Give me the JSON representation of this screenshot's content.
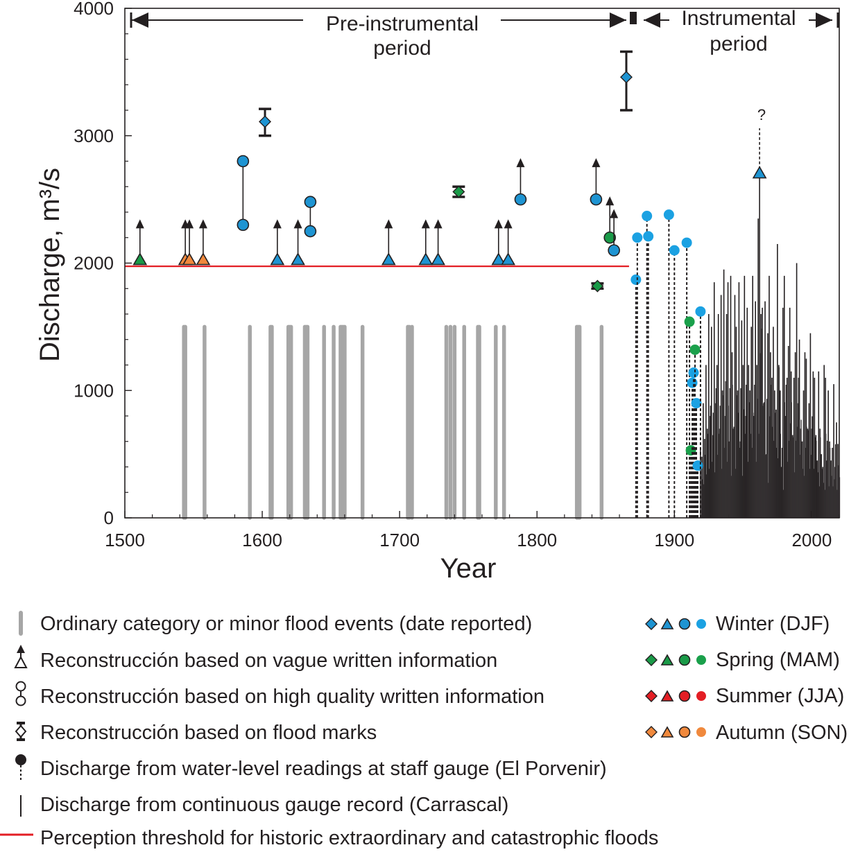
{
  "chart_data": {
    "type": "scatter",
    "xlabel": "Year",
    "ylabel": "Discharge, m³/s",
    "xlim": [
      1500,
      2020
    ],
    "ylim": [
      0,
      4000
    ],
    "x_ticks": [
      1500,
      1600,
      1700,
      1800,
      1900,
      2000
    ],
    "y_ticks": [
      0,
      1000,
      2000,
      3000,
      4000
    ],
    "periods": [
      {
        "name": "pre_instrumental",
        "label_line1": "Pre-instrumental",
        "label_line2": "period",
        "from": 1500,
        "to": 1865
      },
      {
        "name": "instrumental",
        "label_line1": "Instrumental",
        "label_line2": "period",
        "from": 1876,
        "to": 2020
      }
    ],
    "question_mark": "?",
    "threshold": {
      "value": 1975,
      "from": 1500,
      "to": 1867,
      "color": "#e31e24"
    },
    "ordinary_events": [
      1543,
      1544,
      1558,
      1591,
      1606,
      1607,
      1619,
      1620,
      1621,
      1631,
      1632,
      1633,
      1645,
      1652,
      1657,
      1658,
      1659,
      1660,
      1673,
      1706,
      1707,
      1709,
      1734,
      1737,
      1740,
      1747,
      1757,
      1758,
      1770,
      1776,
      1829,
      1830,
      1831,
      1847
    ],
    "ordinary_top": 1500,
    "vague_reconstructions": [
      {
        "year": 1511,
        "value": 2020,
        "upper": 2300,
        "season": "spring"
      },
      {
        "year": 1544,
        "value": 2020,
        "upper": 2300,
        "season": "autumn"
      },
      {
        "year": 1547,
        "value": 2020,
        "upper": 2300,
        "season": "autumn"
      },
      {
        "year": 1557,
        "value": 2020,
        "upper": 2300,
        "season": "autumn"
      },
      {
        "year": 1611,
        "value": 2020,
        "upper": 2300,
        "season": "winter"
      },
      {
        "year": 1626,
        "value": 2020,
        "upper": 2300,
        "season": "winter"
      },
      {
        "year": 1692,
        "value": 2020,
        "upper": 2300,
        "season": "winter"
      },
      {
        "year": 1719,
        "value": 2020,
        "upper": 2300,
        "season": "winter"
      },
      {
        "year": 1728,
        "value": 2020,
        "upper": 2300,
        "season": "winter"
      },
      {
        "year": 1772,
        "value": 2020,
        "upper": 2300,
        "season": "winter"
      },
      {
        "year": 1779,
        "value": 2020,
        "upper": 2300,
        "season": "winter"
      },
      {
        "year": 1962,
        "value": 2700,
        "upper": 3080,
        "season": "winter",
        "dashed": true
      }
    ],
    "high_quality_reconstructions": [
      {
        "year": 1586,
        "low": 2300,
        "high": 2800,
        "season": "winter"
      },
      {
        "year": 1635,
        "low": 2250,
        "high": 2480,
        "season": "winter"
      },
      {
        "year": 1788,
        "low": 2500,
        "high": 2780,
        "upper_arrow": true,
        "season": "winter"
      },
      {
        "year": 1843,
        "low": 2500,
        "high": 2780,
        "upper_arrow": true,
        "season": "winter"
      },
      {
        "year": 1853,
        "low": 2200,
        "high": 2480,
        "upper_arrow": true,
        "season": "spring"
      },
      {
        "year": 1856,
        "low": 2100,
        "high": 2380,
        "upper_arrow": true,
        "season": "winter"
      }
    ],
    "flood_marks": [
      {
        "year": 1602,
        "value": 3110,
        "low": 3000,
        "high": 3210,
        "season": "winter"
      },
      {
        "year": 1743,
        "value": 2560,
        "low": 2520,
        "high": 2600,
        "season": "spring"
      },
      {
        "year": 1844,
        "value": 1820,
        "low": 1800,
        "high": 1840,
        "season": "spring"
      },
      {
        "year": 1865,
        "value": 3460,
        "low": 3200,
        "high": 3660,
        "season": "winter"
      }
    ],
    "staff_gauge": [
      {
        "year": 1872,
        "value": 1870,
        "season": "winter"
      },
      {
        "year": 1873,
        "value": 2200,
        "season": "winter"
      },
      {
        "year": 1880,
        "value": 2370,
        "season": "winter"
      },
      {
        "year": 1881,
        "value": 2210,
        "season": "winter"
      },
      {
        "year": 1896,
        "value": 2380,
        "season": "winter"
      },
      {
        "year": 1900,
        "value": 2100,
        "season": "winter"
      },
      {
        "year": 1909,
        "value": 2160,
        "season": "winter"
      },
      {
        "year": 1911,
        "value": 1540,
        "season": "spring"
      },
      {
        "year": 1912,
        "value": 530,
        "season": "spring"
      },
      {
        "year": 1913,
        "value": 1060,
        "season": "winter"
      },
      {
        "year": 1914,
        "value": 1140,
        "season": "winter"
      },
      {
        "year": 1915,
        "value": 1320,
        "season": "spring"
      },
      {
        "year": 1916,
        "value": 900,
        "season": "winter"
      },
      {
        "year": 1917,
        "value": 410,
        "season": "winter"
      },
      {
        "year": 1919,
        "value": 1620,
        "season": "winter"
      }
    ],
    "gauge_record": {
      "years": [
        1919,
        1920,
        1921,
        1922,
        1923,
        1924,
        1925,
        1926,
        1927,
        1928,
        1929,
        1930,
        1931,
        1932,
        1933,
        1934,
        1935,
        1936,
        1937,
        1938,
        1939,
        1940,
        1941,
        1942,
        1943,
        1944,
        1945,
        1946,
        1947,
        1948,
        1949,
        1950,
        1951,
        1952,
        1953,
        1954,
        1955,
        1956,
        1957,
        1958,
        1959,
        1960,
        1961,
        1962,
        1963,
        1964,
        1965,
        1966,
        1967,
        1968,
        1969,
        1970,
        1971,
        1972,
        1973,
        1974,
        1975,
        1976,
        1977,
        1978,
        1979,
        1980,
        1981,
        1982,
        1983,
        1984,
        1985,
        1986,
        1987,
        1988,
        1989,
        1990,
        1991,
        1992,
        1993,
        1994,
        1995,
        1996,
        1997,
        1998,
        1999,
        2000,
        2001,
        2002,
        2003,
        2004,
        2005,
        2006,
        2007,
        2008,
        2009,
        2010,
        2011,
        2012,
        2013,
        2014,
        2015,
        2016,
        2017,
        2018,
        2019
      ],
      "values": [
        550,
        480,
        900,
        620,
        1200,
        700,
        1600,
        800,
        1500,
        650,
        1850,
        900,
        1200,
        1600,
        700,
        1750,
        1000,
        1950,
        800,
        1600,
        1850,
        600,
        1900,
        1300,
        700,
        1750,
        1500,
        1000,
        1850,
        600,
        1550,
        1200,
        1900,
        800,
        1650,
        1200,
        1000,
        1500,
        1900,
        800,
        1700,
        1200,
        2350,
        2700,
        1600,
        1650,
        900,
        1700,
        500,
        1450,
        1900,
        1300,
        1100,
        1500,
        1000,
        850,
        2150,
        1200,
        1000,
        400,
        1650,
        1900,
        800,
        1100,
        1350,
        1650,
        1150,
        650,
        1100,
        1300,
        2000,
        900,
        1400,
        700,
        600,
        1000,
        1300,
        1250,
        700,
        900,
        1450,
        700,
        1150,
        1100,
        650,
        450,
        1150,
        700,
        500,
        400,
        1200,
        1100,
        450,
        1000,
        600,
        450,
        550,
        1050,
        400,
        750,
        580
      ]
    },
    "season_colors": {
      "winter": "#1e94d2",
      "spring": "#1a9a48",
      "summer": "#e31e24",
      "autumn": "#f0893d"
    },
    "staff_dot_colors": {
      "winter": "#1ba1e2",
      "spring": "#1aa04b",
      "summer": "#e31e24",
      "autumn": "#f0893d"
    },
    "ordinary_color": "#a6a6a6",
    "grid": false
  },
  "legend": {
    "items": [
      {
        "key": "ordinary",
        "text": "Ordinary category or minor flood events (date reported)"
      },
      {
        "key": "vague",
        "text": "Reconstrucción based on vague written information"
      },
      {
        "key": "high",
        "text": "Reconstrucción based on high quality written information"
      },
      {
        "key": "marks",
        "text": "Reconstrucción based on flood marks"
      },
      {
        "key": "staff",
        "text": "Discharge from water-level readings at staff gauge (El Porvenir)"
      },
      {
        "key": "gauge",
        "text": "Discharge from continuous gauge record (Carrascal)"
      },
      {
        "key": "threshold",
        "text": "Perception threshold for historic extraordinary and catastrophic floods"
      }
    ],
    "seasons": [
      {
        "key": "winter",
        "text": "Winter (DJF)"
      },
      {
        "key": "spring",
        "text": "Spring (MAM)"
      },
      {
        "key": "summer",
        "text": "Summer (JJA)"
      },
      {
        "key": "autumn",
        "text": "Autumn (SON)"
      }
    ]
  }
}
